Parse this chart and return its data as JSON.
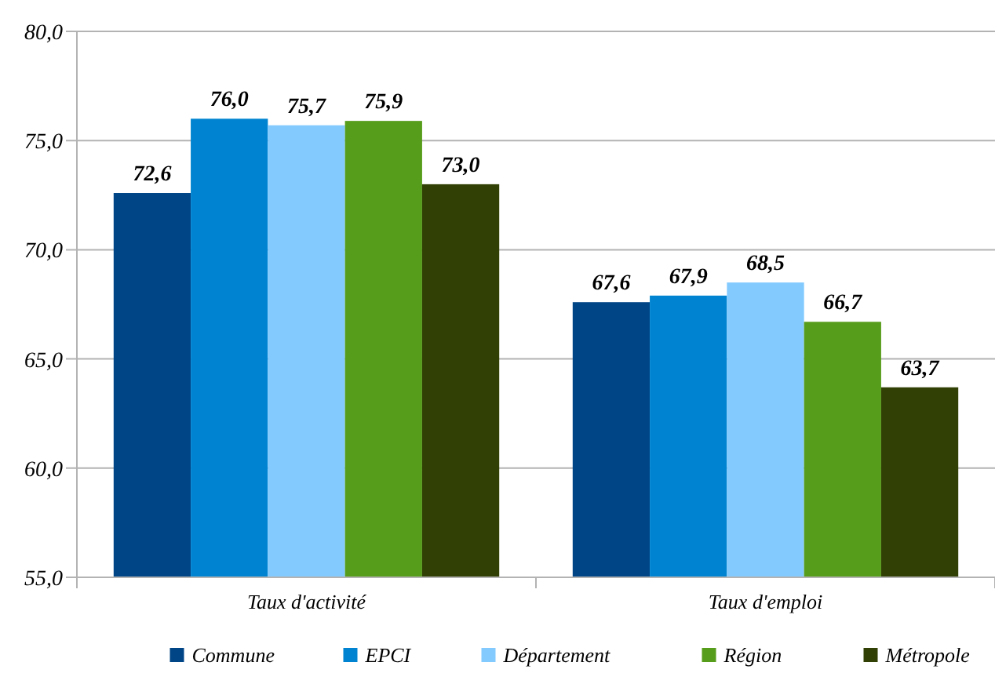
{
  "chart_data": {
    "type": "bar",
    "categories": [
      "Taux d'activité",
      "Taux d'emploi"
    ],
    "series": [
      {
        "name": "Commune",
        "color": "#004586",
        "values": [
          72.6,
          67.6
        ],
        "value_labels": [
          "72,6",
          "67,6"
        ]
      },
      {
        "name": "EPCI",
        "color": "#0084d1",
        "values": [
          76.0,
          67.9
        ],
        "value_labels": [
          "76,0",
          "67,9"
        ]
      },
      {
        "name": "Département",
        "color": "#83caff",
        "values": [
          75.7,
          68.5
        ],
        "value_labels": [
          "75,7",
          "68,5"
        ]
      },
      {
        "name": "Région",
        "color": "#579d1c",
        "values": [
          75.9,
          66.7
        ],
        "value_labels": [
          "75,9",
          "66,7"
        ]
      },
      {
        "name": "Métropole",
        "color": "#314004",
        "values": [
          73.0,
          63.7
        ],
        "value_labels": [
          "73,0",
          "63,7"
        ]
      }
    ],
    "ylim": [
      55,
      80
    ],
    "yticks": [
      {
        "value": 55,
        "label": "55,0"
      },
      {
        "value": 60,
        "label": "60,0"
      },
      {
        "value": 65,
        "label": "65,0"
      },
      {
        "value": 70,
        "label": "70,0"
      },
      {
        "value": 75,
        "label": "75,0"
      },
      {
        "value": 80,
        "label": "80,0"
      }
    ],
    "grid": "y",
    "legend": "bottom"
  }
}
